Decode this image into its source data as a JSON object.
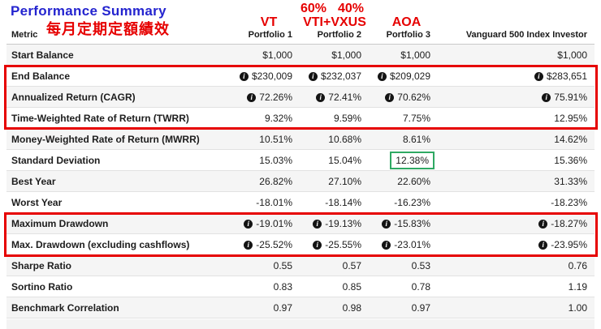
{
  "title": "Performance Summary",
  "annotations": {
    "chinese_note": "每月定期定額績效",
    "allocation_60": "60%",
    "allocation_40": "40%",
    "portfolio1_ticker": "VT",
    "portfolio2_tickers": "VTI+VXUS",
    "portfolio3_ticker": "AOA"
  },
  "colors": {
    "title_blue": "#2424cf",
    "annotation_red": "#e60000",
    "highlight_green": "#2fa963",
    "row_stripe": "#f5f5f5"
  },
  "table": {
    "metric_header": "Metric",
    "columns": [
      "Portfolio 1",
      "Portfolio 2",
      "Portfolio 3",
      "Vanguard 500 Index Investor"
    ],
    "highlight": {
      "row": 5,
      "col": 2
    },
    "rows": [
      {
        "metric": "Start Balance",
        "info": false,
        "values": [
          "$1,000",
          "$1,000",
          "$1,000",
          "$1,000"
        ]
      },
      {
        "metric": "End Balance",
        "info": true,
        "values": [
          "$230,009",
          "$232,037",
          "$209,029",
          "$283,651"
        ]
      },
      {
        "metric": "Annualized Return (CAGR)",
        "info": true,
        "values": [
          "72.26%",
          "72.41%",
          "70.62%",
          "75.91%"
        ]
      },
      {
        "metric": "Time-Weighted Rate of Return (TWRR)",
        "info": false,
        "values": [
          "9.32%",
          "9.59%",
          "7.75%",
          "12.95%"
        ]
      },
      {
        "metric": "Money-Weighted Rate of Return (MWRR)",
        "info": false,
        "values": [
          "10.51%",
          "10.68%",
          "8.61%",
          "14.62%"
        ]
      },
      {
        "metric": "Standard Deviation",
        "info": false,
        "values": [
          "15.03%",
          "15.04%",
          "12.38%",
          "15.36%"
        ]
      },
      {
        "metric": "Best Year",
        "info": false,
        "values": [
          "26.82%",
          "27.10%",
          "22.60%",
          "31.33%"
        ]
      },
      {
        "metric": "Worst Year",
        "info": false,
        "values": [
          "-18.01%",
          "-18.14%",
          "-16.23%",
          "-18.23%"
        ]
      },
      {
        "metric": "Maximum Drawdown",
        "info": true,
        "values": [
          "-19.01%",
          "-19.13%",
          "-15.83%",
          "-18.27%"
        ]
      },
      {
        "metric": "Max. Drawdown (excluding cashflows)",
        "info": true,
        "values": [
          "-25.52%",
          "-25.55%",
          "-23.01%",
          "-23.95%"
        ]
      },
      {
        "metric": "Sharpe Ratio",
        "info": false,
        "values": [
          "0.55",
          "0.57",
          "0.53",
          "0.76"
        ]
      },
      {
        "metric": "Sortino Ratio",
        "info": false,
        "values": [
          "0.83",
          "0.85",
          "0.78",
          "1.19"
        ]
      },
      {
        "metric": "Benchmark Correlation",
        "info": false,
        "values": [
          "0.97",
          "0.98",
          "0.97",
          "1.00"
        ]
      }
    ]
  }
}
